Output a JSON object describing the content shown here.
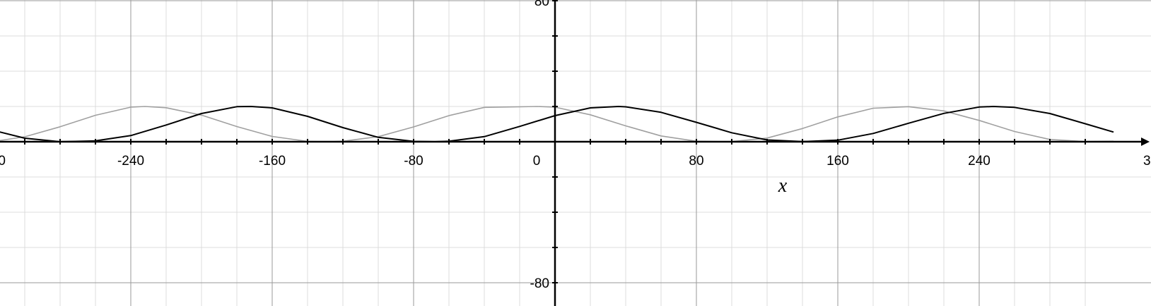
{
  "chart_data": {
    "type": "line",
    "xlim": [
      -316,
      316
    ],
    "ylim": [
      -84,
      84
    ],
    "x_ticks": [
      "-240",
      "-160",
      "-80",
      "0",
      "80",
      "160",
      "240"
    ],
    "x_edge_labels": [
      "0",
      "3"
    ],
    "y_ticks": [
      "80",
      "-80"
    ],
    "xlabel": "x",
    "ylabel": "",
    "grid": true,
    "grid_major_step": 80,
    "grid_minor_step": 20,
    "series": [
      {
        "color": "#a0a0a0",
        "x": [
          -316,
          -300,
          -280,
          -260,
          -240,
          -232,
          -220,
          -200,
          -180,
          -160,
          -140,
          -128,
          -120,
          -100,
          -80,
          -60,
          -40,
          -20,
          -10,
          0,
          20,
          40,
          60,
          80,
          96,
          100,
          120,
          140,
          160,
          180,
          200,
          220,
          240,
          260,
          280,
          300,
          316
        ],
        "y": [
          0.4,
          2.8,
          8.5,
          15.0,
          19.6,
          20.0,
          19.3,
          15.1,
          8.6,
          3.0,
          0.2,
          0.0,
          0.3,
          2.9,
          8.4,
          14.8,
          19.5,
          19.8,
          20.0,
          19.6,
          15.3,
          9.0,
          3.3,
          0.3,
          0.0,
          0.1,
          2.1,
          7.5,
          14.1,
          19.0,
          19.9,
          17.5,
          12.1,
          5.8,
          1.3,
          0.1,
          0.3
        ]
      },
      {
        "color": "#000000",
        "x": [
          -316,
          -300,
          -280,
          -260,
          -240,
          -220,
          -200,
          -180,
          -172,
          -160,
          -140,
          -120,
          -100,
          -80,
          -68,
          -60,
          -40,
          -20,
          0,
          20,
          36,
          40,
          60,
          80,
          100,
          120,
          140,
          160,
          180,
          200,
          220,
          240,
          248,
          260,
          280,
          300,
          316
        ],
        "y": [
          6.0,
          2.0,
          0.0,
          0.5,
          3.5,
          9.5,
          16.0,
          19.9,
          20.0,
          19.2,
          14.4,
          8.0,
          2.5,
          0.2,
          0.0,
          0.3,
          2.9,
          8.7,
          14.8,
          19.2,
          20.0,
          19.8,
          16.7,
          11.0,
          5.1,
          1.0,
          0.1,
          0.9,
          4.7,
          10.5,
          16.1,
          19.7,
          20.0,
          19.5,
          16.0,
          10.2,
          5.5
        ]
      }
    ]
  }
}
